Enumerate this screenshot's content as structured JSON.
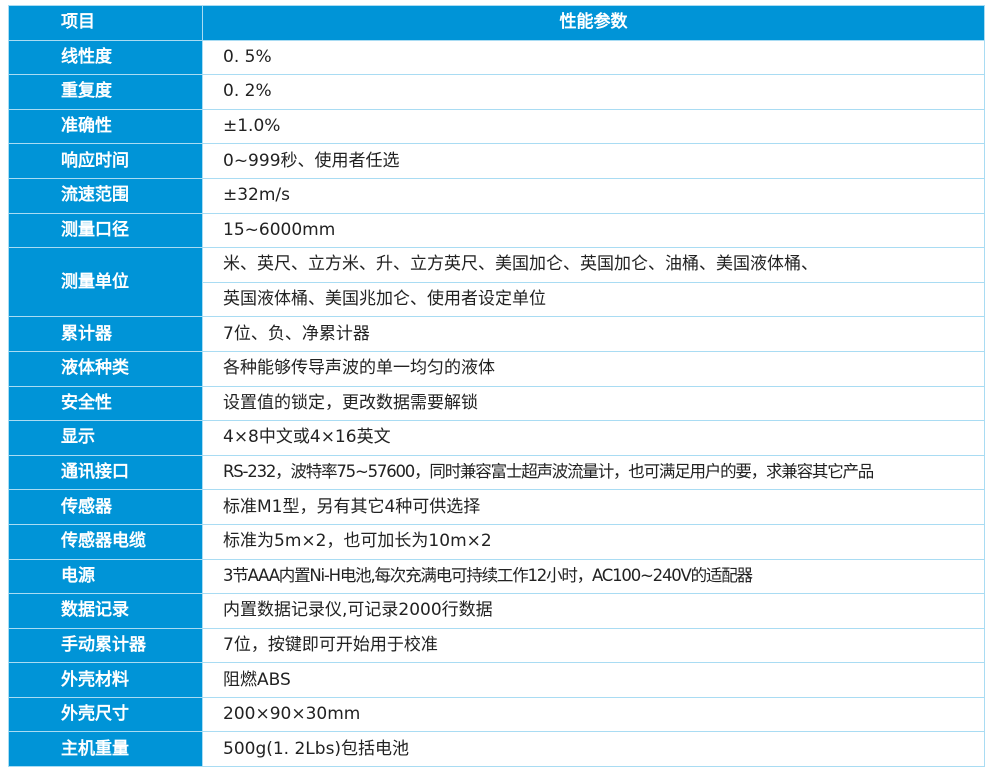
{
  "header": {
    "col1": "项目",
    "col2": "性能参数"
  },
  "rows": [
    {
      "label": "线性度",
      "values": [
        "0. 5%"
      ]
    },
    {
      "label": "重复度",
      "values": [
        "0. 2%"
      ]
    },
    {
      "label": "准确性",
      "values": [
        "±1.0%"
      ]
    },
    {
      "label": "响应时间",
      "values": [
        "0~999秒、使用者任选"
      ]
    },
    {
      "label": "流速范围",
      "values": [
        "±32m/s"
      ]
    },
    {
      "label": "测量口径",
      "values": [
        "15~6000mm"
      ]
    },
    {
      "label": "测量单位",
      "values": [
        "米、英尺、立方米、升、立方英尺、美国加仑、英国加仑、油桶、美国液体桶、",
        "英国液体桶、美国兆加仑、使用者设定单位"
      ]
    },
    {
      "label": "累计器",
      "values": [
        "7位、负、净累计器"
      ]
    },
    {
      "label": "液体种类",
      "values": [
        "各种能够传导声波的单一均匀的液体"
      ]
    },
    {
      "label": "安全性",
      "values": [
        "设置值的锁定，更改数据需要解锁"
      ]
    },
    {
      "label": "显示",
      "values": [
        "4×8中文或4×16英文"
      ]
    },
    {
      "label": "通讯接口",
      "values": [
        "RS-232，波特率75~57600，同时兼容富士超声波流量计，也可满足用户的要，求兼容其它产品"
      ]
    },
    {
      "label": "传感器",
      "values": [
        "标准M1型，另有其它4种可供选择"
      ]
    },
    {
      "label": "传感器电缆",
      "values": [
        "标准为5m×2，也可加长为10m×2"
      ]
    },
    {
      "label": "电源",
      "values": [
        "3节AAA内置Ni-H电池,每次充满电可持续工作12小时，AC100~240V的适配器"
      ]
    },
    {
      "label": "数据记录",
      "values": [
        "内置数据记录仪,可记录2000行数据"
      ]
    },
    {
      "label": "手动累计器",
      "values": [
        "7位，按键即可开始用于校准"
      ]
    },
    {
      "label": "外壳材料",
      "values": [
        "阻燃ABS"
      ]
    },
    {
      "label": "外壳尺寸",
      "values": [
        "200×90×30mm"
      ]
    },
    {
      "label": "主机重量",
      "values": [
        "500g(1. 2Lbs)包括电池"
      ]
    }
  ],
  "colors": {
    "header_blue": "#0094d7",
    "border": "#a9dcf3"
  }
}
